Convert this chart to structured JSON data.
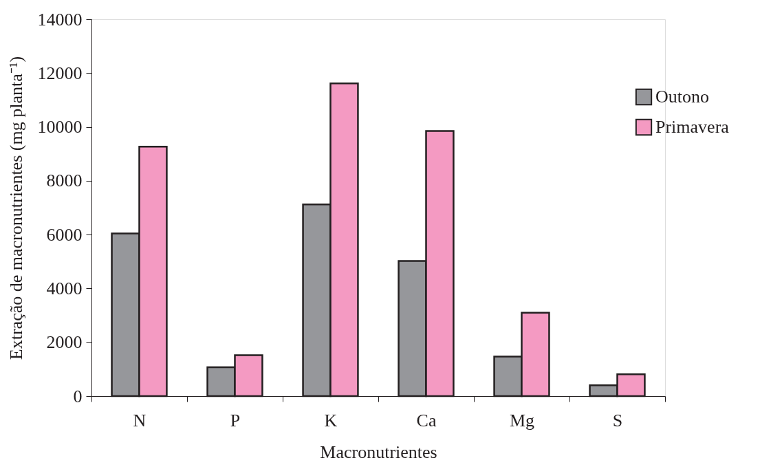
{
  "chart_data": {
    "type": "bar",
    "xlabel": "Macronutrientes",
    "ylabel": "Extração de macronutrientes (mg planta⁻¹)",
    "categories": [
      "N",
      "P",
      "K",
      "Ca",
      "Mg",
      "S"
    ],
    "series": [
      {
        "name": "Outono",
        "color": "#96979b",
        "values": [
          6040,
          1070,
          7120,
          5020,
          1470,
          400
        ]
      },
      {
        "name": "Primavera",
        "color": "#f49ac2",
        "values": [
          9270,
          1520,
          11620,
          9850,
          3100,
          810
        ]
      }
    ],
    "ylim": [
      0,
      14000
    ],
    "yticks": [
      0,
      2000,
      4000,
      6000,
      8000,
      10000,
      12000,
      14000
    ],
    "grid": false,
    "legend": "right"
  }
}
